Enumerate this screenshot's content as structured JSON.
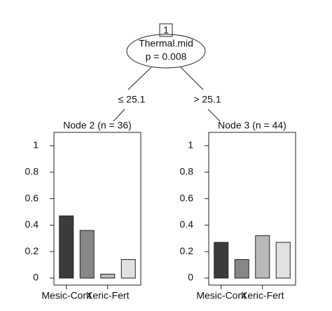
{
  "tree": {
    "node_id": "1",
    "split_variable": "Thermal.mid",
    "p_value": "p = 0.008",
    "edges": [
      "≤ 25.1",
      "> 25.1"
    ]
  },
  "chart_data": [
    {
      "type": "bar",
      "title": "Node 2 (n = 36)",
      "categories": [
        "Mesic-Cont",
        null,
        "Xeric-Fert",
        null
      ],
      "values": [
        0.47,
        0.36,
        0.03,
        0.14
      ],
      "colors": [
        "#3b3b3b",
        "#878787",
        "#b9b9b9",
        "#e1e1e1"
      ],
      "ylim": [
        0,
        1
      ],
      "yticks": [
        0,
        0.2,
        0.4,
        0.6,
        0.8,
        1
      ]
    },
    {
      "type": "bar",
      "title": "Node 3 (n = 44)",
      "categories": [
        "Mesic-Cont",
        null,
        "Xeric-Fert",
        null
      ],
      "values": [
        0.27,
        0.14,
        0.32,
        0.27
      ],
      "colors": [
        "#3b3b3b",
        "#878787",
        "#b9b9b9",
        "#e1e1e1"
      ],
      "ylim": [
        0,
        1
      ],
      "yticks": [
        0,
        0.2,
        0.4,
        0.6,
        0.8,
        1
      ]
    }
  ]
}
